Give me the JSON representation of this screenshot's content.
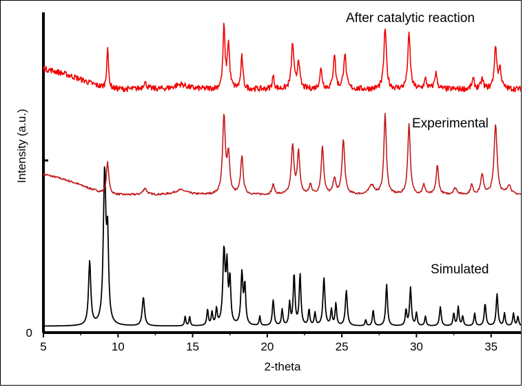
{
  "chart_data": {
    "type": "line",
    "title": "",
    "xlabel": "2-theta",
    "ylabel": "Intensity (a.u.)",
    "xlim": [
      5,
      37
    ],
    "x_ticks": [
      "5",
      "10",
      "15",
      "20",
      "25",
      "30",
      "35"
    ],
    "x_tick_values": [
      5,
      10,
      15,
      20,
      25,
      30,
      35
    ],
    "y_ticks": [
      "0"
    ],
    "y_tick_values": [
      0
    ],
    "ylim": [
      0,
      1
    ],
    "grid": false,
    "legend": "none",
    "series": [
      {
        "name": "Simulated",
        "color": "#000000",
        "offset": 0.02,
        "baseline": 0.0,
        "peaks": [
          [
            8.1,
            0.2,
            0.09
          ],
          [
            9.1,
            0.47,
            0.1
          ],
          [
            9.3,
            0.25,
            0.08
          ],
          [
            11.7,
            0.09,
            0.09
          ],
          [
            14.5,
            0.03,
            0.05
          ],
          [
            14.8,
            0.03,
            0.05
          ],
          [
            16.0,
            0.05,
            0.06
          ],
          [
            16.3,
            0.04,
            0.06
          ],
          [
            16.6,
            0.05,
            0.06
          ],
          [
            17.1,
            0.23,
            0.09
          ],
          [
            17.3,
            0.17,
            0.07
          ],
          [
            17.5,
            0.14,
            0.07
          ],
          [
            18.3,
            0.16,
            0.08
          ],
          [
            18.5,
            0.12,
            0.07
          ],
          [
            19.5,
            0.03,
            0.05
          ],
          [
            20.4,
            0.08,
            0.07
          ],
          [
            21.0,
            0.05,
            0.06
          ],
          [
            21.5,
            0.07,
            0.06
          ],
          [
            21.8,
            0.16,
            0.07
          ],
          [
            22.2,
            0.16,
            0.07
          ],
          [
            22.8,
            0.05,
            0.06
          ],
          [
            23.2,
            0.04,
            0.06
          ],
          [
            23.8,
            0.15,
            0.08
          ],
          [
            24.3,
            0.05,
            0.06
          ],
          [
            24.6,
            0.07,
            0.06
          ],
          [
            25.3,
            0.11,
            0.08
          ],
          [
            26.6,
            0.02,
            0.05
          ],
          [
            27.1,
            0.05,
            0.06
          ],
          [
            28.0,
            0.13,
            0.07
          ],
          [
            29.3,
            0.05,
            0.06
          ],
          [
            29.6,
            0.12,
            0.07
          ],
          [
            30.0,
            0.04,
            0.06
          ],
          [
            30.6,
            0.03,
            0.06
          ],
          [
            31.6,
            0.06,
            0.07
          ],
          [
            32.5,
            0.04,
            0.06
          ],
          [
            32.8,
            0.06,
            0.06
          ],
          [
            33.1,
            0.03,
            0.06
          ],
          [
            33.9,
            0.04,
            0.06
          ],
          [
            34.6,
            0.07,
            0.07
          ],
          [
            35.4,
            0.1,
            0.07
          ],
          [
            35.9,
            0.04,
            0.06
          ],
          [
            36.5,
            0.04,
            0.06
          ],
          [
            36.8,
            0.03,
            0.06
          ]
        ]
      },
      {
        "name": "Experimental",
        "color": "#c0191b",
        "offset": 0.43,
        "baseline": 0.1,
        "peaks": [
          [
            9.3,
            0.1,
            0.1
          ],
          [
            11.8,
            0.02,
            0.15
          ],
          [
            14.2,
            0.015,
            0.5
          ],
          [
            17.1,
            0.24,
            0.11
          ],
          [
            17.4,
            0.12,
            0.1
          ],
          [
            18.3,
            0.12,
            0.1
          ],
          [
            20.4,
            0.03,
            0.1
          ],
          [
            21.7,
            0.15,
            0.11
          ],
          [
            22.1,
            0.13,
            0.1
          ],
          [
            22.9,
            0.03,
            0.1
          ],
          [
            23.7,
            0.15,
            0.1
          ],
          [
            24.5,
            0.05,
            0.1
          ],
          [
            25.1,
            0.17,
            0.11
          ],
          [
            27.0,
            0.03,
            0.2
          ],
          [
            27.9,
            0.25,
            0.1
          ],
          [
            29.5,
            0.22,
            0.1
          ],
          [
            30.5,
            0.03,
            0.1
          ],
          [
            31.4,
            0.09,
            0.1
          ],
          [
            32.6,
            0.02,
            0.15
          ],
          [
            33.7,
            0.03,
            0.1
          ],
          [
            34.4,
            0.06,
            0.12
          ],
          [
            35.3,
            0.22,
            0.12
          ],
          [
            36.2,
            0.03,
            0.15
          ]
        ]
      },
      {
        "name": "After catalytic reaction",
        "color": "#f00000",
        "offset": 0.76,
        "baseline": 0.1,
        "peaks": [
          [
            9.3,
            0.13,
            0.07
          ],
          [
            11.8,
            0.02,
            0.15
          ],
          [
            14.2,
            0.015,
            0.5
          ],
          [
            17.1,
            0.19,
            0.08
          ],
          [
            17.4,
            0.14,
            0.09
          ],
          [
            18.3,
            0.1,
            0.08
          ],
          [
            20.4,
            0.04,
            0.08
          ],
          [
            21.7,
            0.14,
            0.1
          ],
          [
            22.1,
            0.09,
            0.09
          ],
          [
            23.6,
            0.06,
            0.1
          ],
          [
            24.5,
            0.11,
            0.09
          ],
          [
            25.2,
            0.11,
            0.1
          ],
          [
            27.9,
            0.19,
            0.1
          ],
          [
            29.5,
            0.17,
            0.1
          ],
          [
            30.6,
            0.03,
            0.1
          ],
          [
            31.3,
            0.05,
            0.1
          ],
          [
            33.8,
            0.03,
            0.1
          ],
          [
            34.4,
            0.03,
            0.1
          ],
          [
            35.3,
            0.13,
            0.1
          ],
          [
            35.6,
            0.06,
            0.1
          ]
        ]
      }
    ]
  }
}
